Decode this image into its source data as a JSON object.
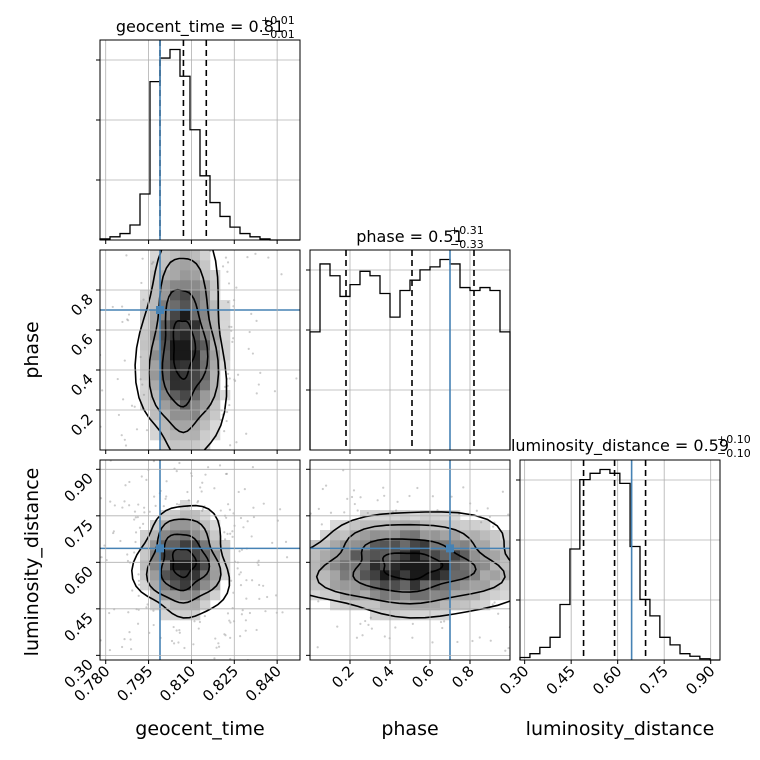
{
  "chart_data": {
    "type": "corner",
    "parameters": [
      "geocent_time",
      "phase",
      "luminosity_distance"
    ],
    "truth": {
      "geocent_time": 0.799,
      "phase": 0.7,
      "luminosity_distance": 0.645
    },
    "titles": [
      {
        "param": "geocent_time",
        "prefix": "geocent_time = 0.81",
        "plus": "+0.01",
        "minus": "−0.01"
      },
      {
        "param": "phase",
        "prefix": "phase = 0.51",
        "plus": "+0.31",
        "minus": "−0.33"
      },
      {
        "param": "luminosity_distance",
        "prefix": "luminosity_distance = 0.59",
        "plus": "+0.10",
        "minus": "−0.10"
      }
    ],
    "axes": {
      "geocent_time": {
        "label": "geocent_time",
        "range": [
          0.778,
          0.848
        ],
        "ticks": [
          0.78,
          0.795,
          0.81,
          0.825,
          0.84
        ],
        "tick_labels": [
          "0.780",
          "0.795",
          "0.810",
          "0.825",
          "0.840"
        ]
      },
      "phase": {
        "label": "phase",
        "range": [
          0.0,
          1.0
        ],
        "ticks": [
          0.2,
          0.4,
          0.6,
          0.8
        ],
        "tick_labels": [
          "0.2",
          "0.4",
          "0.6",
          "0.8"
        ]
      },
      "luminosity_distance": {
        "label": "luminosity_distance",
        "range": [
          0.285,
          0.93
        ],
        "ticks": [
          0.3,
          0.45,
          0.6,
          0.75,
          0.9
        ],
        "tick_labels": [
          "0.30",
          "0.45",
          "0.60",
          "0.75",
          "0.90"
        ]
      }
    },
    "histograms": {
      "geocent_time": {
        "edges": [
          0.778,
          0.7815,
          0.785,
          0.7885,
          0.792,
          0.7955,
          0.799,
          0.8025,
          0.806,
          0.8095,
          0.813,
          0.8165,
          0.82,
          0.8235,
          0.827,
          0.8305,
          0.834,
          0.8375,
          0.841,
          0.8445,
          0.848
        ],
        "counts": [
          1,
          3,
          6,
          14,
          43,
          148,
          170,
          178,
          153,
          103,
          60,
          35,
          22,
          12,
          6,
          3,
          1,
          0,
          0,
          0
        ],
        "quantiles": [
          0.799,
          0.8072,
          0.8152
        ]
      },
      "phase": {
        "edges": [
          0.0,
          0.05,
          0.1,
          0.15,
          0.2,
          0.25,
          0.3,
          0.35,
          0.4,
          0.45,
          0.5,
          0.55,
          0.6,
          0.65,
          0.7,
          0.75,
          0.8,
          0.85,
          0.9,
          0.95,
          1.0
        ],
        "counts": [
          80,
          126,
          118,
          104,
          112,
          121,
          118,
          106,
          90,
          108,
          115,
          122,
          124,
          129,
          126,
          110,
          108,
          110,
          108,
          80
        ],
        "quantiles": [
          0.18,
          0.51,
          0.82
        ]
      },
      "luminosity_distance": {
        "edges": [
          0.285,
          0.317,
          0.349,
          0.382,
          0.414,
          0.446,
          0.478,
          0.511,
          0.543,
          0.575,
          0.607,
          0.64,
          0.672,
          0.704,
          0.736,
          0.769,
          0.801,
          0.833,
          0.865,
          0.898,
          0.93
        ],
        "counts": [
          2,
          5,
          10,
          18,
          44,
          88,
          143,
          148,
          151,
          148,
          140,
          90,
          48,
          35,
          18,
          12,
          5,
          3,
          1,
          0
        ],
        "quantiles": [
          0.49,
          0.59,
          0.69
        ]
      }
    },
    "joint": [
      {
        "x": "geocent_time",
        "y": "phase",
        "center_x": 0.8072,
        "sigma_x": 0.0075,
        "center_y": 0.51,
        "sigma_y": 0.29
      },
      {
        "x": "geocent_time",
        "y": "luminosity_distance",
        "center_x": 0.8072,
        "sigma_x": 0.008,
        "center_y": 0.6,
        "sigma_y": 0.09
      },
      {
        "x": "phase",
        "y": "luminosity_distance",
        "center_x": 0.5,
        "sigma_x": 0.29,
        "center_y": 0.59,
        "sigma_y": 0.085
      }
    ],
    "grid": true,
    "truth_color": "#4682b4",
    "line_color": "#000000",
    "grid_color": "#b0b0b0"
  }
}
